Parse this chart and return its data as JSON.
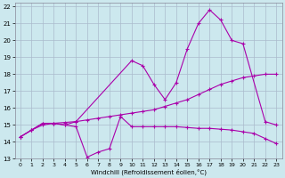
{
  "background_color": "#cce8ee",
  "grid_color": "#aabbcc",
  "line_color": "#aa00aa",
  "xlim": [
    -0.5,
    23.5
  ],
  "ylim": [
    13,
    22.2
  ],
  "xlabel": "Windchill (Refroidissement éolien,°C)",
  "yticks": [
    13,
    14,
    15,
    16,
    17,
    18,
    19,
    20,
    21,
    22
  ],
  "xticks": [
    0,
    1,
    2,
    3,
    4,
    5,
    6,
    7,
    8,
    9,
    10,
    11,
    12,
    13,
    14,
    15,
    16,
    17,
    18,
    19,
    20,
    21,
    22,
    23
  ],
  "line1_x": [
    0,
    1,
    2,
    3,
    4,
    5,
    6,
    7,
    8,
    9,
    10,
    11,
    12,
    13,
    14,
    15,
    16,
    17,
    18,
    19,
    20,
    21,
    22,
    23
  ],
  "line1_y": [
    14.3,
    14.7,
    15.0,
    15.1,
    15.15,
    15.2,
    15.3,
    15.4,
    15.5,
    15.6,
    15.7,
    15.8,
    15.9,
    16.1,
    16.3,
    16.5,
    16.8,
    17.1,
    17.4,
    17.6,
    17.8,
    17.9,
    18.0,
    18.0
  ],
  "line2_x": [
    0,
    1,
    2,
    3,
    4,
    5,
    6,
    7,
    8,
    9,
    10,
    11,
    12,
    13,
    14,
    15,
    16,
    17,
    18,
    19,
    20,
    21,
    22,
    23
  ],
  "line2_y": [
    14.3,
    14.7,
    15.1,
    15.1,
    15.0,
    14.9,
    13.1,
    13.4,
    13.6,
    15.5,
    14.9,
    14.9,
    14.9,
    14.9,
    14.9,
    14.85,
    14.8,
    14.8,
    14.75,
    14.7,
    14.6,
    14.5,
    14.2,
    13.9
  ],
  "line3_x": [
    0,
    1,
    2,
    3,
    4,
    5,
    10,
    11,
    12,
    13,
    14,
    15,
    16,
    17,
    18,
    19,
    20,
    22,
    23
  ],
  "line3_y": [
    14.3,
    14.7,
    15.1,
    15.1,
    15.0,
    15.2,
    18.8,
    18.5,
    17.4,
    16.5,
    17.5,
    19.5,
    21.0,
    21.8,
    21.2,
    20.0,
    19.8,
    15.2,
    15.0
  ]
}
